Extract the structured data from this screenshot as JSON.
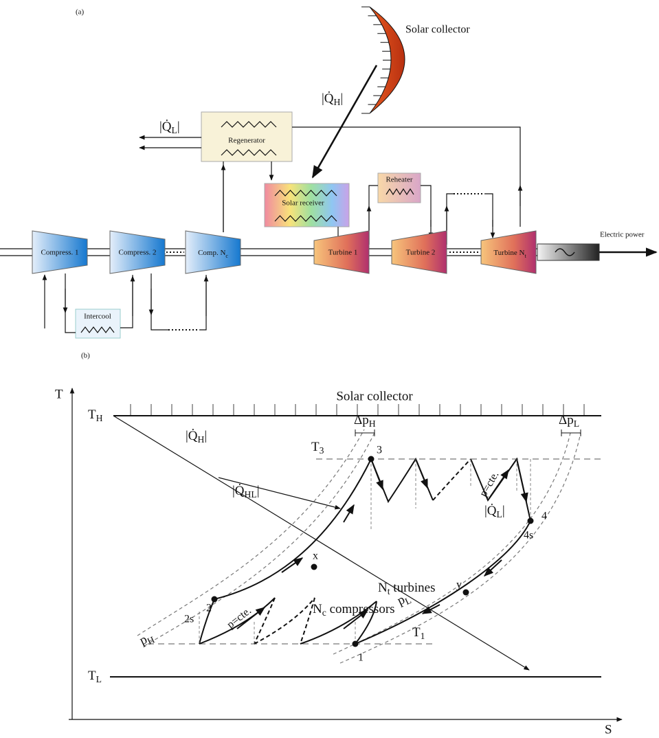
{
  "panel_a": {
    "label": "(a)",
    "solar_collector": "Solar collector",
    "heat_in": {
      "text": "|Q̇",
      "sub": "H",
      "post": "|"
    },
    "heat_out": {
      "text": "|Q̇",
      "sub": "L",
      "post": "|"
    },
    "regenerator": "Regenerator",
    "solar_receiver": "Solar receiver",
    "reheater": "Reheater",
    "compressors": [
      "Compress. 1",
      "Compress. 2",
      {
        "text": "Comp. N",
        "sub": "c"
      }
    ],
    "intercooler": "Intercool",
    "turbines": [
      "Turbine 1",
      "Turbine 2",
      {
        "text": "Turbine N",
        "sub": "t"
      }
    ],
    "electric_power": "Electric power"
  },
  "panel_b": {
    "label": "(b)",
    "t_axis": "T",
    "s_axis": "S",
    "solar_collector": "Solar collector",
    "t_high": {
      "text": "T",
      "sub": "H"
    },
    "t_low": {
      "text": "T",
      "sub": "L"
    },
    "t3": {
      "text": "T",
      "sub": "3"
    },
    "t1": {
      "text": "T",
      "sub": "1"
    },
    "heat_in": {
      "text": "|Q̇",
      "sub": "H",
      "post": "|"
    },
    "heat_loss": {
      "text": "|Q̇",
      "sub": "HL",
      "post": "|"
    },
    "heat_out": {
      "text": "|Q̇",
      "sub": "L",
      "post": "|"
    },
    "dp_high": {
      "text": "Δp",
      "sub": "H"
    },
    "dp_low": {
      "text": "Δp",
      "sub": "L"
    },
    "p_high": {
      "text": "p",
      "sub": "H"
    },
    "p_low": {
      "text": "p",
      "sub": "L"
    },
    "p_const_compressor": "p=cte.",
    "p_const_turbine": "p=cte.",
    "turbines": {
      "text": "N",
      "sub": "t",
      "post": " turbines"
    },
    "compressors": {
      "text": "N",
      "sub": "c",
      "post": " compressors"
    },
    "points": [
      "3",
      "4",
      "4s",
      "x",
      "y",
      "2",
      "2s",
      "1"
    ]
  }
}
